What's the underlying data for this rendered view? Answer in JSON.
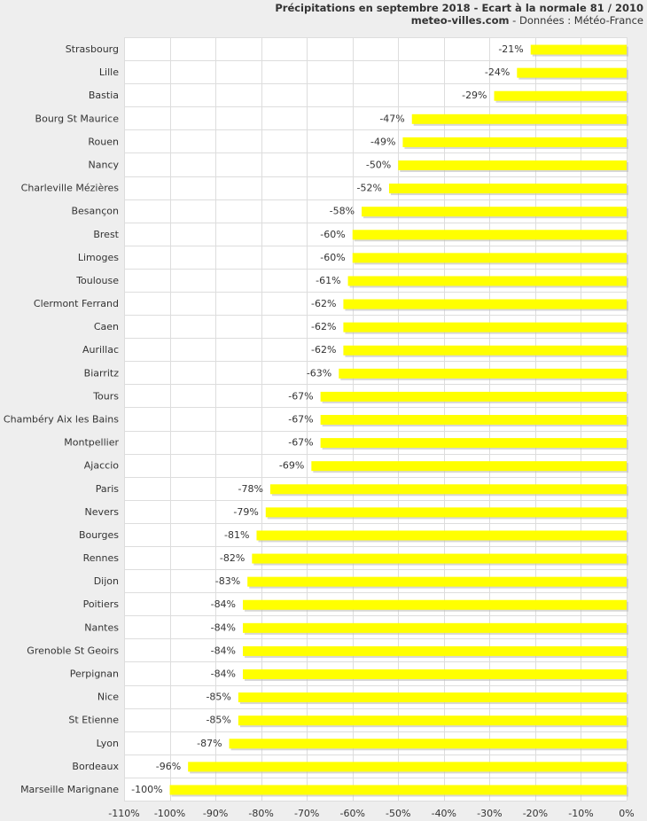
{
  "chart_data": {
    "type": "bar",
    "orientation": "horizontal",
    "title": "Précipitations en septembre 2018 - Ecart à la normale 81 / 2010",
    "subtitle_site": "meteo-villes.com",
    "subtitle_source": " - Données : Météo-France",
    "categories": [
      "Strasbourg",
      "Lille",
      "Bastia",
      "Bourg St Maurice",
      "Rouen",
      "Nancy",
      "Charleville Mézières",
      "Besançon",
      "Brest",
      "Limoges",
      "Toulouse",
      "Clermont Ferrand",
      "Caen",
      "Aurillac",
      "Biarritz",
      "Tours",
      "Chambéry Aix les Bains",
      "Montpellier",
      "Ajaccio",
      "Paris",
      "Nevers",
      "Bourges",
      "Rennes",
      "Dijon",
      "Poitiers",
      "Nantes",
      "Grenoble St Geoirs",
      "Perpignan",
      "Nice",
      "St Etienne",
      "Lyon",
      "Bordeaux",
      "Marseille Marignane"
    ],
    "values": [
      -21,
      -24,
      -29,
      -47,
      -49,
      -50,
      -52,
      -58,
      -60,
      -60,
      -61,
      -62,
      -62,
      -62,
      -63,
      -67,
      -67,
      -67,
      -69,
      -78,
      -79,
      -81,
      -82,
      -83,
      -84,
      -84,
      -84,
      -84,
      -85,
      -85,
      -87,
      -96,
      -100
    ],
    "data_labels": [
      "-21%",
      "-24%",
      "-29%",
      "-47%",
      "-49%",
      "-50%",
      "-52%",
      "-58%",
      "-60%",
      "-60%",
      "-61%",
      "-62%",
      "-62%",
      "-62%",
      "-63%",
      "-67%",
      "-67%",
      "-67%",
      "-69%",
      "-78%",
      "-79%",
      "-81%",
      "-82%",
      "-83%",
      "-84%",
      "-84%",
      "-84%",
      "-84%",
      "-85%",
      "-85%",
      "-87%",
      "-96%",
      "-100%"
    ],
    "xlim": [
      -110,
      0
    ],
    "xticks": [
      -110,
      -100,
      -90,
      -80,
      -70,
      -60,
      -50,
      -40,
      -30,
      -20,
      -10,
      0
    ],
    "xtick_labels": [
      "-110%",
      "-100%",
      "-90%",
      "-80%",
      "-70%",
      "-60%",
      "-50%",
      "-40%",
      "-30%",
      "-20%",
      "-10%",
      "0%"
    ],
    "bar_color": "#ffff00",
    "bar_shadow_color": "#bdbdbd",
    "grid": true,
    "legend": "none"
  }
}
